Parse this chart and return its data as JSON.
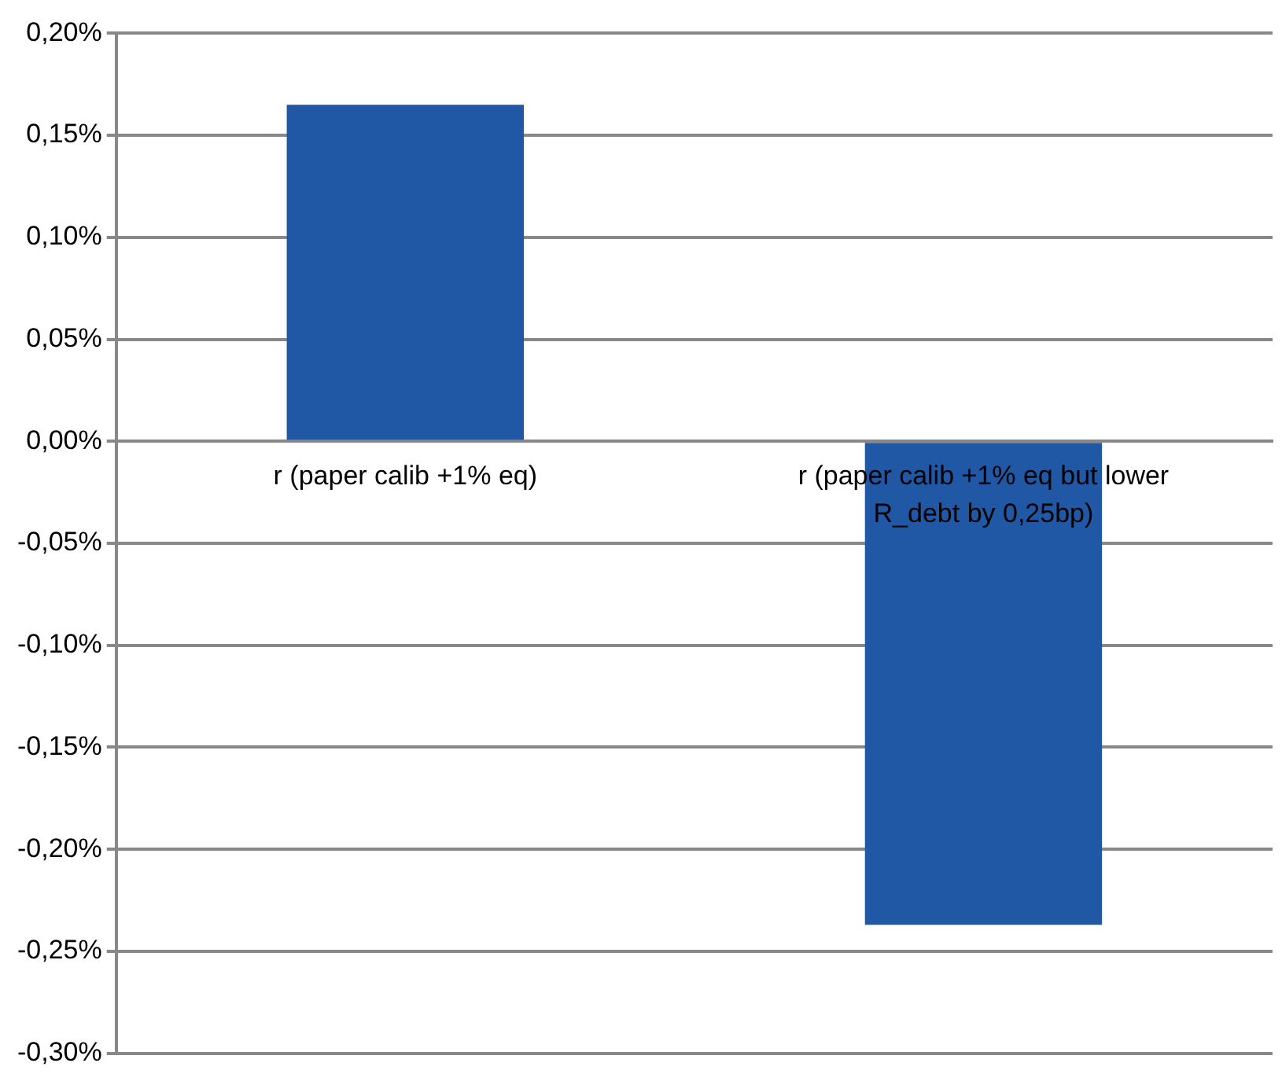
{
  "chart_data": {
    "type": "bar",
    "categories": [
      "r (paper calib +1% eq)",
      "r (paper calib +1% eq but lower R_debt by 0,25bp)"
    ],
    "values": [
      0.165,
      -0.237
    ],
    "color": "#2058a5",
    "ylim": [
      -0.3,
      0.2
    ],
    "yticks": [
      {
        "value": -0.3,
        "label": "-0,30%"
      },
      {
        "value": -0.25,
        "label": "-0,25%"
      },
      {
        "value": -0.2,
        "label": "-0,20%"
      },
      {
        "value": -0.15,
        "label": "-0,15%"
      },
      {
        "value": -0.1,
        "label": "-0,10%"
      },
      {
        "value": -0.05,
        "label": "-0,05%"
      },
      {
        "value": 0,
        "label": "0,00%"
      },
      {
        "value": 0.05,
        "label": "0,05%"
      },
      {
        "value": 0.1,
        "label": "0,10%"
      },
      {
        "value": 0.15,
        "label": "0,15%"
      },
      {
        "value": 0.2,
        "label": "0,20%"
      }
    ],
    "grid": "y",
    "legend": false
  }
}
